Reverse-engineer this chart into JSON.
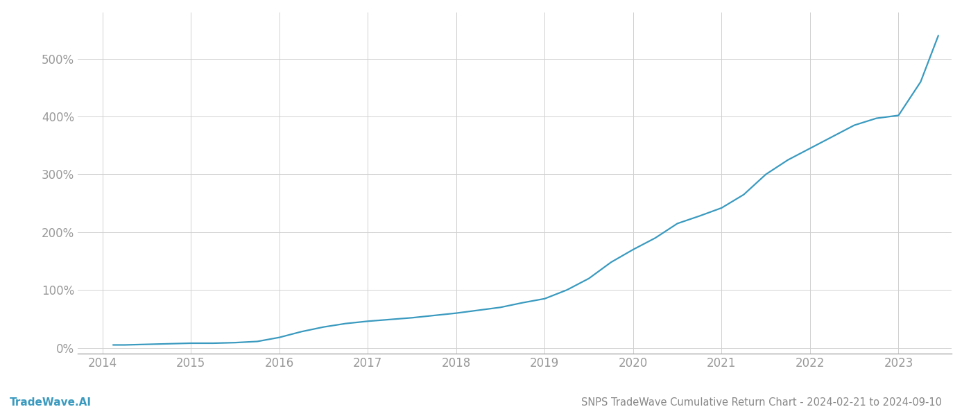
{
  "title": "SNPS TradeWave Cumulative Return Chart - 2024-02-21 to 2024-09-10",
  "watermark": "TradeWave.AI",
  "line_color": "#3a9abf",
  "background_color": "#ffffff",
  "grid_color": "#d0d0d0",
  "x_years": [
    2014,
    2015,
    2016,
    2017,
    2018,
    2019,
    2020,
    2021,
    2022,
    2023
  ],
  "x_data": [
    2014.12,
    2014.25,
    2014.5,
    2014.75,
    2015.0,
    2015.25,
    2015.5,
    2015.75,
    2016.0,
    2016.25,
    2016.5,
    2016.75,
    2017.0,
    2017.25,
    2017.5,
    2017.75,
    2018.0,
    2018.25,
    2018.5,
    2018.75,
    2019.0,
    2019.25,
    2019.5,
    2019.75,
    2020.0,
    2020.25,
    2020.5,
    2020.75,
    2021.0,
    2021.25,
    2021.5,
    2021.75,
    2022.0,
    2022.25,
    2022.5,
    2022.75,
    2023.0,
    2023.25,
    2023.45
  ],
  "y_data": [
    5,
    5,
    6,
    7,
    8,
    8,
    9,
    11,
    18,
    28,
    36,
    42,
    46,
    49,
    52,
    56,
    60,
    65,
    70,
    78,
    85,
    100,
    120,
    148,
    170,
    190,
    215,
    228,
    242,
    265,
    300,
    325,
    345,
    365,
    385,
    397,
    402,
    460,
    540
  ],
  "yticks": [
    0,
    100,
    200,
    300,
    400,
    500
  ],
  "ylim": [
    -10,
    580
  ],
  "xlim": [
    2013.72,
    2023.6
  ],
  "title_fontsize": 10.5,
  "watermark_fontsize": 11,
  "tick_fontsize": 12,
  "tick_color": "#999999",
  "title_color": "#888888",
  "line_width": 1.6
}
